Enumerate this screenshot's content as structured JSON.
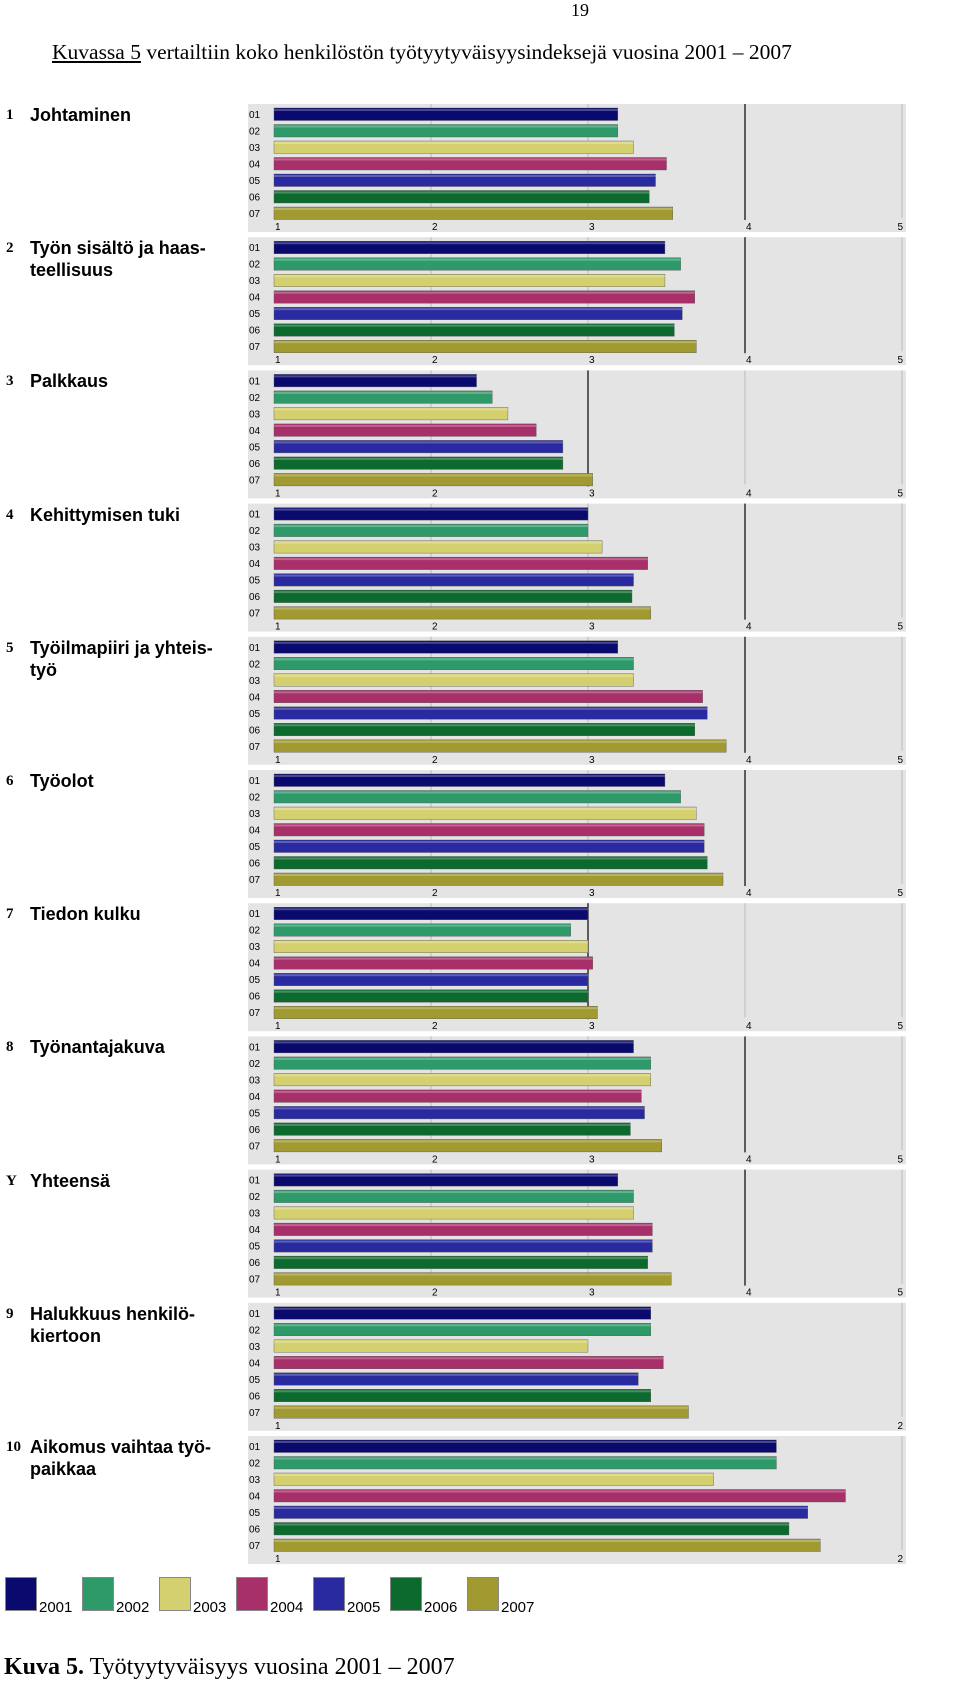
{
  "page_number": "19",
  "intro": {
    "underlined": "Kuvassa 5",
    "rest": " vertailtiin koko henkilöstön työtyytyväisyysindeksejä vuosina 2001 – 2007"
  },
  "caption": {
    "bold": "Kuva 5.",
    "rest": " Työtyytyväisyys vuosina 2001 – 2007"
  },
  "colors": {
    "2001": "#0a0a6e",
    "2002": "#2e9a6a",
    "2003": "#d4d070",
    "2004": "#a8306a",
    "2005": "#2a2aa0",
    "2006": "#0c6a2e",
    "2007": "#a09a30",
    "panel_bg": "#e4e4e4"
  },
  "legend": [
    {
      "year": "2001",
      "color": "#0a0a6e"
    },
    {
      "year": "2002",
      "color": "#2e9a6a"
    },
    {
      "year": "2003",
      "color": "#d4d070"
    },
    {
      "year": "2004",
      "color": "#a8306a"
    },
    {
      "year": "2005",
      "color": "#2a2aa0"
    },
    {
      "year": "2006",
      "color": "#0c6a2e"
    },
    {
      "year": "2007",
      "color": "#a09a30"
    }
  ],
  "chart_data": [
    {
      "type": "bar",
      "number": "1",
      "label_lines": [
        "Johtaminen"
      ],
      "categories": [
        "01",
        "02",
        "03",
        "04",
        "05",
        "06",
        "07"
      ],
      "values": [
        3.19,
        3.19,
        3.29,
        3.5,
        3.43,
        3.39,
        3.54
      ],
      "xlim": [
        1,
        5
      ],
      "ticks": [
        "1",
        "2",
        "3",
        "4",
        "5"
      ],
      "refline": 4
    },
    {
      "type": "bar",
      "number": "2",
      "label_lines": [
        "Työn sisältö ja haas-",
        "teellisuus"
      ],
      "categories": [
        "01",
        "02",
        "03",
        "04",
        "05",
        "06",
        "07"
      ],
      "values": [
        3.49,
        3.59,
        3.49,
        3.68,
        3.6,
        3.55,
        3.69
      ],
      "xlim": [
        1,
        5
      ],
      "ticks": [
        "1",
        "2",
        "3",
        "4",
        "5"
      ],
      "refline": 4
    },
    {
      "type": "bar",
      "number": "3",
      "label_lines": [
        "Palkkaus"
      ],
      "categories": [
        "01",
        "02",
        "03",
        "04",
        "05",
        "06",
        "07"
      ],
      "values": [
        2.29,
        2.39,
        2.49,
        2.67,
        2.84,
        2.84,
        3.03
      ],
      "xlim": [
        1,
        5
      ],
      "ticks": [
        "1",
        "2",
        "3",
        "4",
        "5"
      ],
      "refline": 3
    },
    {
      "type": "bar",
      "number": "4",
      "label_lines": [
        "Kehittymisen tuki"
      ],
      "categories": [
        "01",
        "02",
        "03",
        "04",
        "05",
        "06",
        "07"
      ],
      "values": [
        3.0,
        3.0,
        3.09,
        3.38,
        3.29,
        3.28,
        3.4
      ],
      "xlim": [
        1,
        5
      ],
      "ticks": [
        "1",
        "2",
        "3",
        "4",
        "5"
      ],
      "refline": 4
    },
    {
      "type": "bar",
      "number": "5",
      "label_lines": [
        "Työilmapiiri ja yhteis-",
        "työ"
      ],
      "categories": [
        "01",
        "02",
        "03",
        "04",
        "05",
        "06",
        "07"
      ],
      "values": [
        3.19,
        3.29,
        3.29,
        3.73,
        3.76,
        3.68,
        3.88
      ],
      "xlim": [
        1,
        5
      ],
      "ticks": [
        "1",
        "2",
        "3",
        "4",
        "5"
      ],
      "refline": 4
    },
    {
      "type": "bar",
      "number": "6",
      "label_lines": [
        "Työolot"
      ],
      "categories": [
        "01",
        "02",
        "03",
        "04",
        "05",
        "06",
        "07"
      ],
      "values": [
        3.49,
        3.59,
        3.69,
        3.74,
        3.74,
        3.76,
        3.86
      ],
      "xlim": [
        1,
        5
      ],
      "ticks": [
        "1",
        "2",
        "3",
        "4",
        "5"
      ],
      "refline": 4
    },
    {
      "type": "bar",
      "number": "7",
      "label_lines": [
        "Tiedon kulku"
      ],
      "categories": [
        "01",
        "02",
        "03",
        "04",
        "05",
        "06",
        "07"
      ],
      "values": [
        3.0,
        2.89,
        3.0,
        3.03,
        3.0,
        3.0,
        3.06
      ],
      "xlim": [
        1,
        5
      ],
      "ticks": [
        "1",
        "2",
        "3",
        "4",
        "5"
      ],
      "refline": 3
    },
    {
      "type": "bar",
      "number": "8",
      "label_lines": [
        "Työnantajakuva"
      ],
      "categories": [
        "01",
        "02",
        "03",
        "04",
        "05",
        "06",
        "07"
      ],
      "values": [
        3.29,
        3.4,
        3.4,
        3.34,
        3.36,
        3.27,
        3.47
      ],
      "xlim": [
        1,
        5
      ],
      "ticks": [
        "1",
        "2",
        "3",
        "4",
        "5"
      ],
      "refline": 4
    },
    {
      "type": "bar",
      "number": "Y",
      "label_lines": [
        "Yhteensä"
      ],
      "categories": [
        "01",
        "02",
        "03",
        "04",
        "05",
        "06",
        "07"
      ],
      "values": [
        3.19,
        3.29,
        3.29,
        3.41,
        3.41,
        3.38,
        3.53
      ],
      "xlim": [
        1,
        5
      ],
      "ticks": [
        "1",
        "2",
        "3",
        "4",
        "5"
      ],
      "refline": 4
    },
    {
      "type": "bar",
      "number": "9",
      "label_lines": [
        "Halukkuus henkilö-",
        "kiertoon"
      ],
      "categories": [
        "01",
        "02",
        "03",
        "04",
        "05",
        "06",
        "07"
      ],
      "values": [
        1.6,
        1.6,
        1.5,
        1.62,
        1.58,
        1.6,
        1.66
      ],
      "xlim": [
        1,
        2
      ],
      "ticks": [
        "1",
        "2"
      ],
      "refline": null
    },
    {
      "type": "bar",
      "number": "10",
      "label_lines": [
        "Aikomus vaihtaa työ-",
        "paikkaa"
      ],
      "categories": [
        "01",
        "02",
        "03",
        "04",
        "05",
        "06",
        "07"
      ],
      "values": [
        1.8,
        1.8,
        1.7,
        1.91,
        1.85,
        1.82,
        1.87
      ],
      "xlim": [
        1,
        2
      ],
      "ticks": [
        "1",
        "2"
      ],
      "refline": null
    }
  ]
}
